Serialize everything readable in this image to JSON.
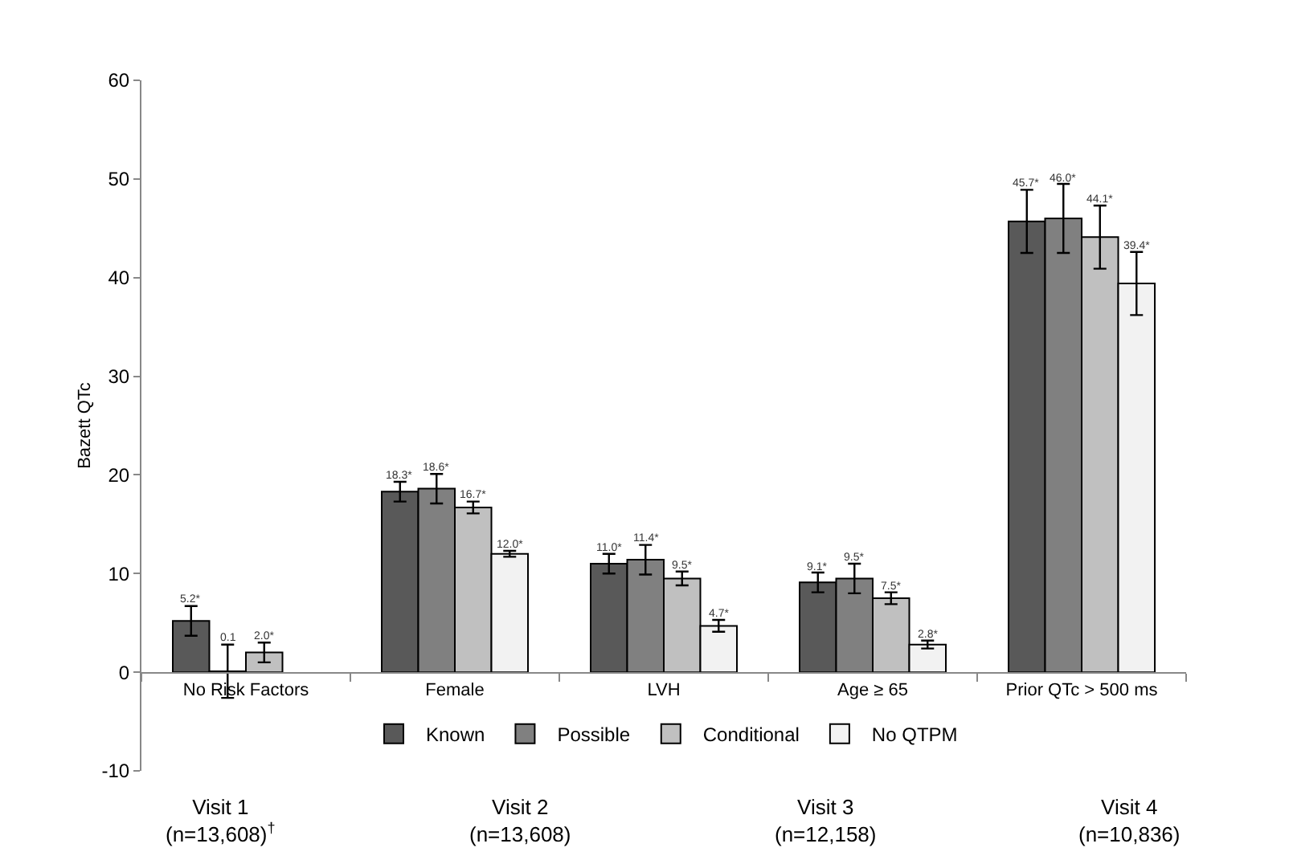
{
  "chart_data": {
    "type": "bar",
    "ylabel": "Bazett QTc",
    "categories": [
      "No Risk Factors",
      "Female",
      "LVH",
      "Age ≥ 65",
      "Prior QTc > 500 ms"
    ],
    "series": [
      {
        "name": "Known",
        "color": "#595959",
        "values": [
          5.2,
          18.3,
          11.0,
          9.1,
          45.7
        ],
        "errors": [
          1.5,
          1.0,
          1.0,
          1.0,
          3.2
        ],
        "value_labels": [
          "5.2*",
          "18.3*",
          "11.0*",
          "9.1*",
          "45.7*"
        ]
      },
      {
        "name": "Possible",
        "color": "#808080",
        "values": [
          0.1,
          18.6,
          11.4,
          9.5,
          46.0
        ],
        "errors": [
          2.7,
          1.5,
          1.5,
          1.5,
          3.5
        ],
        "value_labels": [
          "0.1",
          "18.6*",
          "11.4*",
          "9.5*",
          "46.0*"
        ]
      },
      {
        "name": "Conditional",
        "color": "#c0c0c0",
        "values": [
          2.0,
          16.7,
          9.5,
          7.5,
          44.1
        ],
        "errors": [
          1.0,
          0.6,
          0.7,
          0.6,
          3.2
        ],
        "value_labels": [
          "2.0*",
          "16.7*",
          "9.5*",
          "7.5*",
          "44.1*"
        ]
      },
      {
        "name": "No QTPM",
        "color": "#f2f2f2",
        "values": [
          null,
          12.0,
          4.7,
          2.8,
          39.4
        ],
        "errors": [
          null,
          0.3,
          0.6,
          0.4,
          3.2
        ],
        "value_labels": [
          null,
          "12.0*",
          "4.7*",
          "2.8*",
          "39.4*"
        ]
      }
    ],
    "ylim": [
      -10,
      60
    ],
    "yticks": [
      -10,
      0,
      10,
      20,
      30,
      40,
      50,
      60
    ],
    "grid": false,
    "legend": "bottom",
    "annotations": [
      "Visit 1\n(n=13,608)$^{†}$",
      "Visit 2\n(n=13,608)",
      "Visit 3\n(n=12,158)",
      "Visit 4\n(n=10,836)"
    ]
  }
}
